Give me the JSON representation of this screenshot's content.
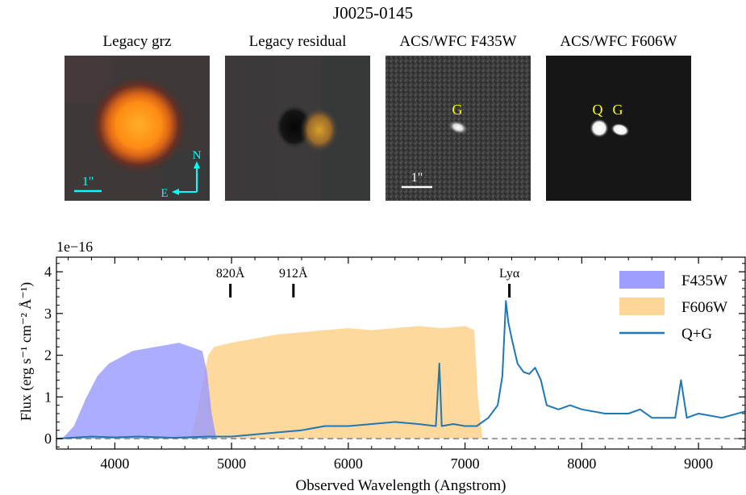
{
  "title": "J0025-0145",
  "panels": [
    {
      "label": "Legacy grz"
    },
    {
      "label": "Legacy residual"
    },
    {
      "label": "ACS/WFC F435W"
    },
    {
      "label": "ACS/WFC F606W"
    }
  ],
  "annotations": {
    "scale_bar": "1\"",
    "compass_n": "N",
    "compass_e": "E",
    "label_g": "G",
    "label_q": "Q"
  },
  "colors": {
    "f435w": "#9999ff",
    "f606w": "#ffd699",
    "spectrum": "#1f77b4",
    "compass": "#00ffff",
    "labels": "#ffff00"
  },
  "chart_data": {
    "type": "area",
    "xlabel": "Observed Wavelength (Angstrom)",
    "ylabel": "Flux (erg s⁻¹ cm⁻² Å⁻¹)",
    "offset_label": "1e−16",
    "xlim": [
      3500,
      9400
    ],
    "ylim": [
      -0.25,
      4.35
    ],
    "xticks": [
      4000,
      5000,
      6000,
      7000,
      8000,
      9000
    ],
    "yticks": [
      0,
      1,
      2,
      3,
      4
    ],
    "legend_position": "top-right",
    "series": [
      {
        "name": "F435W",
        "kind": "filled",
        "x": [
          3550,
          3650,
          3750,
          3850,
          3950,
          4050,
          4150,
          4250,
          4350,
          4450,
          4550,
          4650,
          4750,
          4790,
          4830,
          4870
        ],
        "y": [
          0,
          0.3,
          0.95,
          1.5,
          1.8,
          1.95,
          2.1,
          2.15,
          2.2,
          2.25,
          2.3,
          2.2,
          2.1,
          1.6,
          0.6,
          0
        ]
      },
      {
        "name": "F606W",
        "kind": "filled",
        "x": [
          4650,
          4700,
          4750,
          4800,
          4850,
          5000,
          5200,
          5400,
          5600,
          5800,
          6000,
          6200,
          6400,
          6600,
          6800,
          7000,
          7080,
          7110,
          7150
        ],
        "y": [
          0,
          0.6,
          1.3,
          2.0,
          2.2,
          2.3,
          2.4,
          2.5,
          2.55,
          2.6,
          2.65,
          2.6,
          2.65,
          2.7,
          2.65,
          2.7,
          2.6,
          1.0,
          0
        ]
      },
      {
        "name": "Q+G",
        "kind": "line",
        "x": [
          3500,
          3800,
          4000,
          4200,
          4500,
          4800,
          5000,
          5200,
          5400,
          5600,
          5800,
          6000,
          6200,
          6400,
          6600,
          6750,
          6780,
          6800,
          6900,
          7000,
          7100,
          7200,
          7280,
          7320,
          7350,
          7370,
          7400,
          7450,
          7500,
          7550,
          7600,
          7650,
          7700,
          7800,
          7900,
          8000,
          8200,
          8400,
          8500,
          8600,
          8700,
          8800,
          8850,
          8900,
          9000,
          9200,
          9400
        ],
        "y": [
          0,
          0.05,
          0.03,
          0.05,
          0.02,
          0.05,
          0.05,
          0.1,
          0.15,
          0.2,
          0.3,
          0.3,
          0.35,
          0.4,
          0.35,
          0.3,
          1.8,
          0.3,
          0.35,
          0.3,
          0.3,
          0.5,
          0.8,
          1.5,
          3.3,
          2.8,
          2.4,
          1.8,
          1.6,
          1.55,
          1.7,
          1.4,
          0.8,
          0.7,
          0.8,
          0.7,
          0.6,
          0.6,
          0.7,
          0.5,
          0.5,
          0.5,
          1.4,
          0.5,
          0.6,
          0.5,
          0.65
        ]
      }
    ],
    "line_markers": [
      {
        "label": "820Å",
        "x": 4990
      },
      {
        "label": "912Å",
        "x": 5530
      },
      {
        "label": "Lyα",
        "x": 7380
      }
    ],
    "zero_line": {
      "y": 0,
      "style": "dashed"
    }
  }
}
